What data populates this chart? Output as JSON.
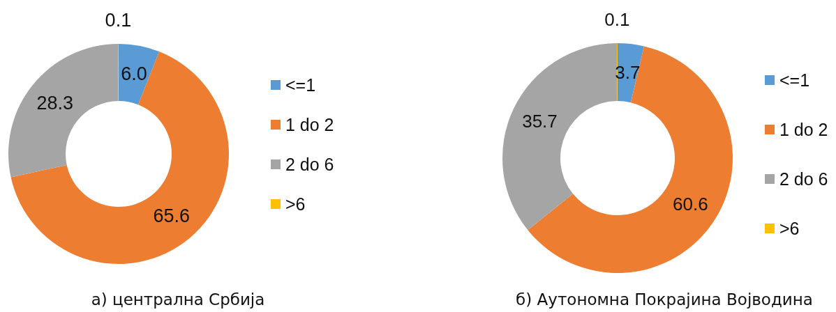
{
  "chart_data": [
    {
      "type": "donut",
      "title": "а) централна Србија",
      "categories": [
        "<=1",
        "1 do 2",
        "2 do 6",
        ">6"
      ],
      "values": [
        6.0,
        65.6,
        28.3,
        0.1
      ],
      "value_labels": [
        "6.0",
        "65.6",
        "28.3",
        "0.1"
      ],
      "colors": [
        "#5b9bd5",
        "#ed7d31",
        "#a5a5a5",
        "#ffc000"
      ],
      "legend": "right"
    },
    {
      "type": "donut",
      "title": "б) Аутономна Покрајина Војводина",
      "categories": [
        "<=1",
        "1 do 2",
        "2 do 6",
        ">6"
      ],
      "values": [
        3.7,
        60.6,
        35.7,
        0.1
      ],
      "data_labels": true,
      "colors": [
        "#5b9bd5",
        "#ed7d31",
        "#a5a5a5",
        "#ffc000"
      ],
      "legend": "right"
    }
  ]
}
